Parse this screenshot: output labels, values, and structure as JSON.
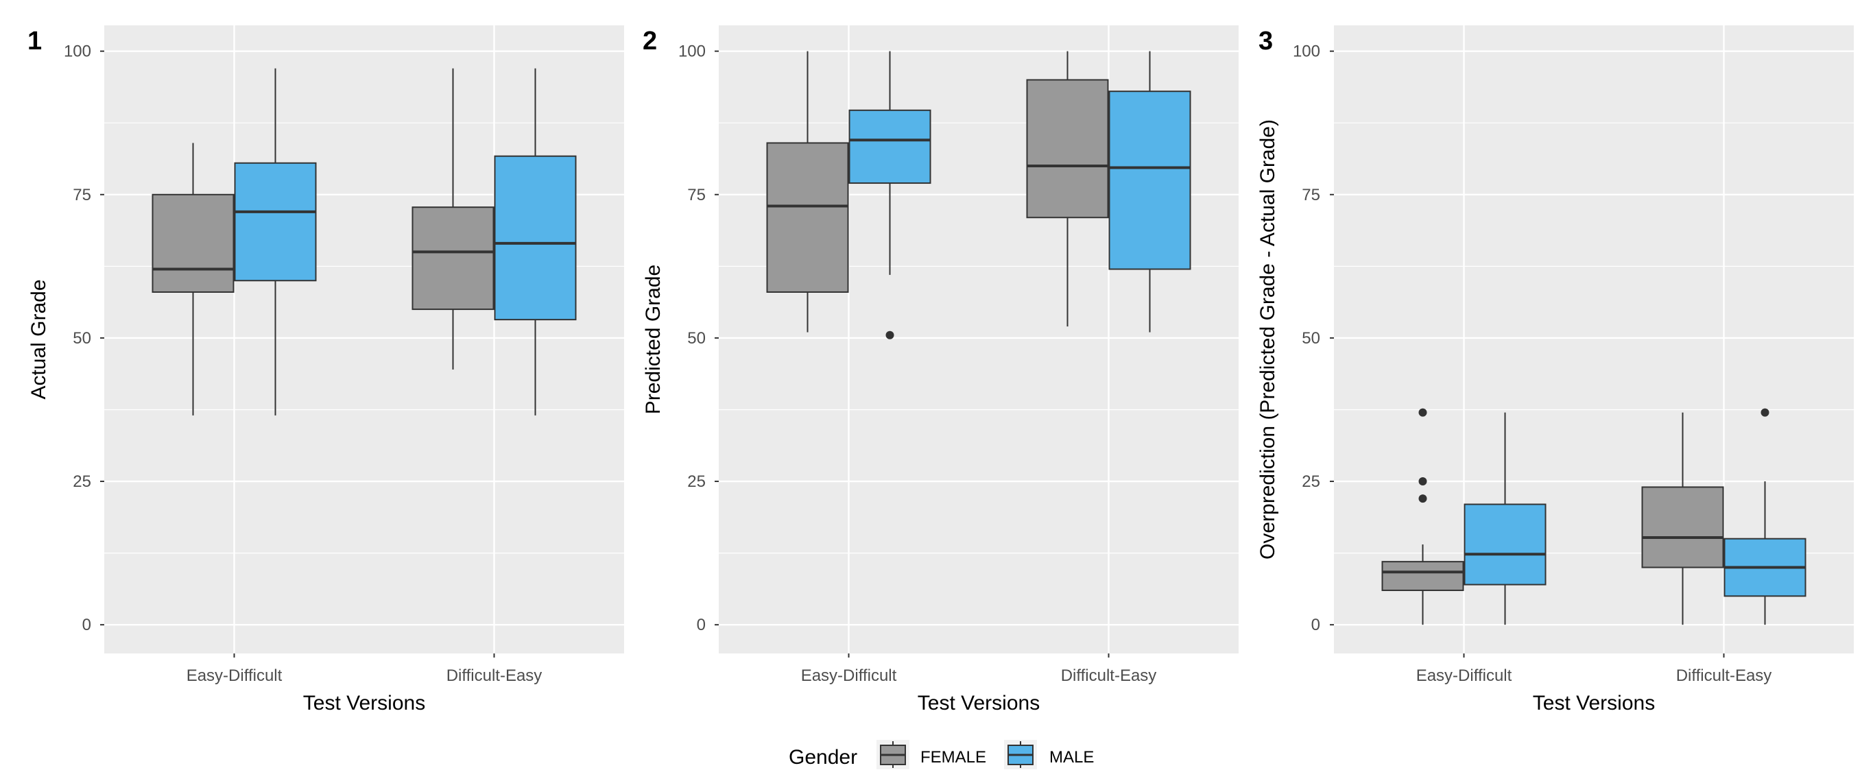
{
  "chart_data": [
    {
      "type": "box",
      "panel_tag": "1",
      "xlabel": "Test Versions",
      "ylabel": "Actual Grade",
      "categories": [
        "Easy-Difficult",
        "Difficult-Easy"
      ],
      "ylim": [
        -5,
        104.5
      ],
      "yticks": [
        0,
        25,
        50,
        75,
        100
      ],
      "grid": true,
      "boxes": [
        {
          "category": "Easy-Difficult",
          "group": "FEMALE",
          "whisker_low": 36.5,
          "q1": 58,
          "median": 62,
          "q3": 75,
          "whisker_high": 84,
          "outliers": []
        },
        {
          "category": "Easy-Difficult",
          "group": "MALE",
          "whisker_low": 36.5,
          "q1": 60,
          "median": 72,
          "q3": 80.5,
          "whisker_high": 97,
          "outliers": []
        },
        {
          "category": "Difficult-Easy",
          "group": "FEMALE",
          "whisker_low": 44.5,
          "q1": 55,
          "median": 65,
          "q3": 72.8,
          "whisker_high": 97,
          "outliers": []
        },
        {
          "category": "Difficult-Easy",
          "group": "MALE",
          "whisker_low": 36.5,
          "q1": 53.2,
          "median": 66.5,
          "q3": 81.7,
          "whisker_high": 97,
          "outliers": []
        }
      ]
    },
    {
      "type": "box",
      "panel_tag": "2",
      "xlabel": "Test Versions",
      "ylabel": "Predicted Grade",
      "categories": [
        "Easy-Difficult",
        "Difficult-Easy"
      ],
      "ylim": [
        -5,
        104.5
      ],
      "yticks": [
        0,
        25,
        50,
        75,
        100
      ],
      "grid": true,
      "boxes": [
        {
          "category": "Easy-Difficult",
          "group": "FEMALE",
          "whisker_low": 51,
          "q1": 58,
          "median": 73,
          "q3": 84,
          "whisker_high": 100,
          "outliers": []
        },
        {
          "category": "Easy-Difficult",
          "group": "MALE",
          "whisker_low": 61,
          "q1": 77,
          "median": 84.5,
          "q3": 89.7,
          "whisker_high": 100,
          "outliers": [
            50.5
          ]
        },
        {
          "category": "Difficult-Easy",
          "group": "FEMALE",
          "whisker_low": 52,
          "q1": 71,
          "median": 80,
          "q3": 95,
          "whisker_high": 100,
          "outliers": []
        },
        {
          "category": "Difficult-Easy",
          "group": "MALE",
          "whisker_low": 51,
          "q1": 62,
          "median": 79.7,
          "q3": 93,
          "whisker_high": 100,
          "outliers": []
        }
      ]
    },
    {
      "type": "box",
      "panel_tag": "3",
      "xlabel": "Test Versions",
      "ylabel": "Overprediction (Predicted Grade - Actual Grade)",
      "categories": [
        "Easy-Difficult",
        "Difficult-Easy"
      ],
      "ylim": [
        -5,
        104.5
      ],
      "yticks": [
        0,
        25,
        50,
        75,
        100
      ],
      "grid": true,
      "boxes": [
        {
          "category": "Easy-Difficult",
          "group": "FEMALE",
          "whisker_low": 0,
          "q1": 6,
          "median": 9.2,
          "q3": 11,
          "whisker_high": 14,
          "outliers": [
            22,
            25,
            37
          ]
        },
        {
          "category": "Easy-Difficult",
          "group": "MALE",
          "whisker_low": 0,
          "q1": 7,
          "median": 12.3,
          "q3": 21,
          "whisker_high": 37,
          "outliers": []
        },
        {
          "category": "Difficult-Easy",
          "group": "FEMALE",
          "whisker_low": 0,
          "q1": 10,
          "median": 15.2,
          "q3": 24,
          "whisker_high": 37,
          "outliers": []
        },
        {
          "category": "Difficult-Easy",
          "group": "MALE",
          "whisker_low": 0,
          "q1": 5,
          "median": 10,
          "q3": 15,
          "whisker_high": 25,
          "outliers": [
            37
          ]
        }
      ]
    }
  ],
  "legend": {
    "title": "Gender",
    "entries": [
      {
        "label": "FEMALE",
        "color": "#999999"
      },
      {
        "label": "MALE",
        "color": "#56B4E9"
      }
    ],
    "placement": "bottom"
  },
  "colors": {
    "panel_background": "#EBEBEB",
    "grid_line": "#FFFFFF",
    "box_stroke": "#333333",
    "FEMALE": "#999999",
    "MALE": "#56B4E9"
  }
}
